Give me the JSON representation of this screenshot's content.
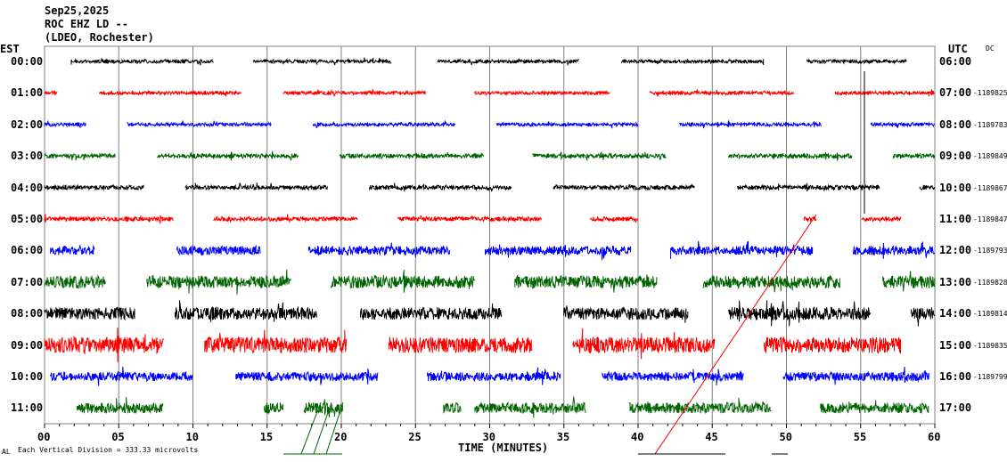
{
  "header": {
    "date": "Sep25,2025",
    "station": "ROC EHZ LD --",
    "network": "(LDEO, Rochester)"
  },
  "left_tz": "EST",
  "right_tz": "UTC",
  "dc_label": "DC",
  "footer": {
    "scale_note": "Each Vertical Division =  333.33 microvolts",
    "corner_mark": "AL"
  },
  "chart_data": {
    "type": "line",
    "title": "ROC EHZ LD -- helicorder",
    "xlabel": "TIME (MINUTES)",
    "xlim": [
      0,
      60
    ],
    "xticks": [
      "00",
      "05",
      "10",
      "15",
      "20",
      "25",
      "30",
      "35",
      "40",
      "45",
      "50",
      "55",
      "60"
    ],
    "grid": true,
    "colors": [
      "#000000",
      "#ff0000",
      "#0000ff",
      "#006400"
    ],
    "rows": [
      {
        "est": "00:00",
        "utc": "06:00",
        "dc": "",
        "amp": 4,
        "segments": [
          [
            1.8,
            11.4
          ],
          [
            14.1,
            23.4
          ],
          [
            26.5,
            36
          ],
          [
            38.9,
            48.5
          ],
          [
            51.4,
            58.1
          ]
        ]
      },
      {
        "est": "01:00",
        "utc": "07:00",
        "dc": "-1189825",
        "amp": 4,
        "segments": [
          [
            0,
            0.9
          ],
          [
            3.7,
            13.3
          ],
          [
            16.1,
            25.7
          ],
          [
            29,
            38.1
          ],
          [
            40.8,
            50.5
          ],
          [
            53.3,
            60
          ]
        ]
      },
      {
        "est": "02:00",
        "utc": "08:00",
        "dc": "-1189783",
        "amp": 4,
        "segments": [
          [
            0,
            2.8
          ],
          [
            5.6,
            15.3
          ],
          [
            18.1,
            27.7
          ],
          [
            30.5,
            40
          ],
          [
            42.8,
            52.4
          ],
          [
            55.7,
            60
          ]
        ]
      },
      {
        "est": "03:00",
        "utc": "09:00",
        "dc": "-1189849",
        "amp": 5,
        "segments": [
          [
            0,
            4.8
          ],
          [
            7.6,
            17.1
          ],
          [
            19.9,
            29.6
          ],
          [
            32.9,
            41.9
          ],
          [
            46.1,
            54.4
          ],
          [
            57.2,
            60
          ]
        ]
      },
      {
        "est": "04:00",
        "utc": "10:00",
        "dc": "-1189867",
        "amp": 5,
        "segments": [
          [
            0,
            6.7
          ],
          [
            9.5,
            19.1
          ],
          [
            21.9,
            31.5
          ],
          [
            34.3,
            43.8
          ],
          [
            46.7,
            56.3
          ],
          [
            59,
            60
          ]
        ]
      },
      {
        "est": "05:00",
        "utc": "11:00",
        "dc": "-1189847",
        "amp": 5,
        "segments": [
          [
            0,
            8.7
          ],
          [
            11.4,
            21.1
          ],
          [
            23.8,
            33.5
          ],
          [
            36.8,
            40
          ],
          [
            51.2,
            52
          ],
          [
            55.1,
            57.7
          ]
        ]
      },
      {
        "est": "06:00",
        "utc": "12:00",
        "dc": "-1189793",
        "amp": 10,
        "segments": [
          [
            0.4,
            3.4
          ],
          [
            8.9,
            14.6
          ],
          [
            17.8,
            27.3
          ],
          [
            29.7,
            39.5
          ],
          [
            42.2,
            51.8
          ],
          [
            54.5,
            60
          ]
        ]
      },
      {
        "est": "07:00",
        "utc": "13:00",
        "dc": "-1189828",
        "amp": 14,
        "segments": [
          [
            0,
            4.1
          ],
          [
            6.9,
            16.6
          ],
          [
            19.3,
            29
          ],
          [
            31.7,
            41.3
          ],
          [
            44.4,
            53.6
          ],
          [
            56.5,
            60
          ]
        ]
      },
      {
        "est": "08:00",
        "utc": "14:00",
        "dc": "-1189814",
        "amp": 14,
        "segments": [
          [
            0,
            6.1
          ],
          [
            8.8,
            18.4
          ],
          [
            21.3,
            30.8
          ],
          [
            35,
            43.4
          ],
          [
            46.1,
            55.7
          ],
          [
            58.4,
            60
          ]
        ]
      },
      {
        "est": "09:00",
        "utc": "15:00",
        "dc": "-1189835",
        "amp": 18,
        "segments": [
          [
            0,
            8
          ],
          [
            10.8,
            20.4
          ],
          [
            23.2,
            32.9
          ],
          [
            35.6,
            45.2
          ],
          [
            48.5,
            57.7
          ]
        ]
      },
      {
        "est": "10:00",
        "utc": "16:00",
        "dc": "-1189799",
        "amp": 10,
        "segments": [
          [
            0.4,
            10
          ],
          [
            12.9,
            22.5
          ],
          [
            25.8,
            34.8
          ],
          [
            37.6,
            47.1
          ],
          [
            49.8,
            59.6
          ]
        ]
      },
      {
        "est": "11:00",
        "utc": "17:00",
        "dc": "",
        "amp": 12,
        "segments": [
          [
            2.2,
            8
          ],
          [
            14.8,
            16.1
          ],
          [
            17.5,
            20.1
          ],
          [
            26.9,
            28.1
          ],
          [
            29,
            36.5
          ],
          [
            39.4,
            49
          ],
          [
            52.3,
            59.6
          ]
        ]
      }
    ]
  }
}
